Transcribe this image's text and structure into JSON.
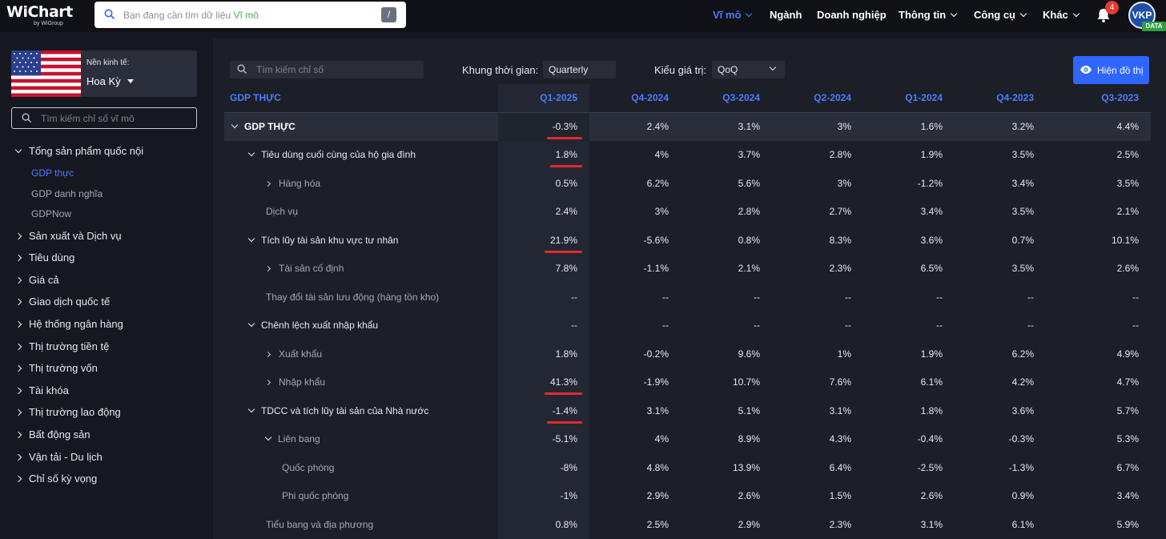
{
  "brand": {
    "name": "WiChart",
    "sub": "by WiGroup"
  },
  "top_search": {
    "placeholder": "Bạn đang cần tìm dữ liệu",
    "hint": "Vĩ mô",
    "shortcut": "/"
  },
  "nav": [
    {
      "label": "Vĩ mô",
      "active": true,
      "dropdown": true
    },
    {
      "label": "Ngành",
      "active": false,
      "dropdown": false
    },
    {
      "label": "Doanh nghiệp",
      "active": false,
      "dropdown": false
    },
    {
      "label": "Thông tin",
      "active": false,
      "dropdown": true
    },
    {
      "label": "Công cụ",
      "active": false,
      "dropdown": true
    },
    {
      "label": "Khác",
      "active": false,
      "dropdown": true
    }
  ],
  "notifications": {
    "count": "4"
  },
  "user": {
    "initials": "VKP",
    "badge": "DATA"
  },
  "sidebar": {
    "economy_label": "Nền kinh tế:",
    "economy_value": "Hoa Kỳ",
    "search_placeholder": "Tìm kiếm chỉ số vĩ mô",
    "tree": [
      {
        "label": "Tổng sản phẩm quốc nội",
        "expanded": true,
        "children": [
          {
            "label": "GDP thực",
            "active": true
          },
          {
            "label": "GDP danh nghĩa",
            "active": false
          },
          {
            "label": "GDPNow",
            "active": false
          }
        ]
      },
      {
        "label": "Sản xuất và Dịch vụ"
      },
      {
        "label": "Tiêu dùng"
      },
      {
        "label": "Giá cả"
      },
      {
        "label": "Giao dịch quốc tế"
      },
      {
        "label": "Hệ thống ngân hàng"
      },
      {
        "label": "Thị trường tiền tệ"
      },
      {
        "label": "Thị trường vốn"
      },
      {
        "label": "Tài khóa"
      },
      {
        "label": "Thị trường lao động"
      },
      {
        "label": "Bất động sản"
      },
      {
        "label": "Vận tải - Du lịch"
      },
      {
        "label": "Chỉ số kỳ vọng"
      }
    ]
  },
  "toolbar": {
    "search_placeholder": "Tìm kiếm chỉ số",
    "timeframe_label": "Khung thời gian:",
    "timeframe_value": "Quarterly",
    "valuetype_label": "Kiểu giá trị:",
    "valuetype_value": "QoQ",
    "chart_button": "Hiện đồ thị"
  },
  "table": {
    "header_first": "GDP THỰC",
    "columns": [
      "Q1-2025",
      "Q4-2024",
      "Q3-2024",
      "Q2-2024",
      "Q1-2024",
      "Q4-2023",
      "Q3-2023"
    ],
    "rows": [
      {
        "name": "GDP THỰC",
        "level": 0,
        "toggle": "expanded",
        "marked": true,
        "values": [
          "-0.3%",
          "2.4%",
          "3.1%",
          "3%",
          "1.6%",
          "3.2%",
          "4.4%"
        ]
      },
      {
        "name": "Tiêu dùng cuối cùng của hộ gia đình",
        "level": 1,
        "toggle": "expanded",
        "marked": true,
        "values": [
          "1.8%",
          "4%",
          "3.7%",
          "2.8%",
          "1.9%",
          "3.5%",
          "2.5%"
        ]
      },
      {
        "name": "Hàng hóa",
        "level": 2,
        "toggle": "collapsed",
        "marked": false,
        "values": [
          "0.5%",
          "6.2%",
          "5.6%",
          "3%",
          "-1.2%",
          "3.4%",
          "3.5%"
        ]
      },
      {
        "name": "Dịch vụ",
        "level": 2,
        "toggle": "none",
        "marked": false,
        "values": [
          "2.4%",
          "3%",
          "2.8%",
          "2.7%",
          "3.4%",
          "3.5%",
          "2.1%"
        ]
      },
      {
        "name": "Tích lũy tài sản khu vực tư nhân",
        "level": 1,
        "toggle": "expanded",
        "marked": true,
        "values": [
          "21.9%",
          "-5.6%",
          "0.8%",
          "8.3%",
          "3.6%",
          "0.7%",
          "10.1%"
        ]
      },
      {
        "name": "Tài sản cố định",
        "level": 2,
        "toggle": "collapsed",
        "marked": false,
        "values": [
          "7.8%",
          "-1.1%",
          "2.1%",
          "2.3%",
          "6.5%",
          "3.5%",
          "2.6%"
        ]
      },
      {
        "name": "Thay đổi tài sản lưu động (hàng tồn kho)",
        "level": 2,
        "toggle": "none",
        "marked": false,
        "values": [
          "--",
          "--",
          "--",
          "--",
          "--",
          "--",
          "--"
        ]
      },
      {
        "name": "Chênh lệch xuất nhập khẩu",
        "level": 1,
        "toggle": "expanded",
        "marked": false,
        "values": [
          "--",
          "--",
          "--",
          "--",
          "--",
          "--",
          "--"
        ]
      },
      {
        "name": "Xuất khẩu",
        "level": 2,
        "toggle": "collapsed",
        "marked": false,
        "values": [
          "1.8%",
          "-0.2%",
          "9.6%",
          "1%",
          "1.9%",
          "6.2%",
          "4.9%"
        ]
      },
      {
        "name": "Nhập khẩu",
        "level": 2,
        "toggle": "collapsed",
        "marked": true,
        "values": [
          "41.3%",
          "-1.9%",
          "10.7%",
          "7.6%",
          "6.1%",
          "4.2%",
          "4.7%"
        ]
      },
      {
        "name": "TDCC và tích lũy tài sản của Nhà nước",
        "level": 1,
        "toggle": "expanded",
        "marked": true,
        "values": [
          "-1.4%",
          "3.1%",
          "5.1%",
          "3.1%",
          "1.8%",
          "3.6%",
          "5.7%"
        ]
      },
      {
        "name": "Liên bang",
        "level": 2,
        "toggle": "expanded",
        "marked": false,
        "values": [
          "-5.1%",
          "4%",
          "8.9%",
          "4.3%",
          "-0.4%",
          "-0.3%",
          "5.3%"
        ]
      },
      {
        "name": "Quốc phòng",
        "level": 3,
        "toggle": "none",
        "marked": false,
        "values": [
          "-8%",
          "4.8%",
          "13.9%",
          "6.4%",
          "-2.5%",
          "-1.3%",
          "6.7%"
        ]
      },
      {
        "name": "Phi quốc phòng",
        "level": 3,
        "toggle": "none",
        "marked": false,
        "values": [
          "-1%",
          "2.9%",
          "2.6%",
          "1.5%",
          "2.6%",
          "0.9%",
          "3.4%"
        ]
      },
      {
        "name": "Tiểu bang và địa phương",
        "level": 2,
        "toggle": "none",
        "marked": false,
        "values": [
          "0.8%",
          "2.5%",
          "2.9%",
          "2.3%",
          "3.1%",
          "6.1%",
          "5.9%"
        ]
      }
    ]
  },
  "colors": {
    "accent": "#2e66ff",
    "active_text": "#4a7cff",
    "marker": "#e32a2a",
    "positive_badge": "#2ea043"
  }
}
